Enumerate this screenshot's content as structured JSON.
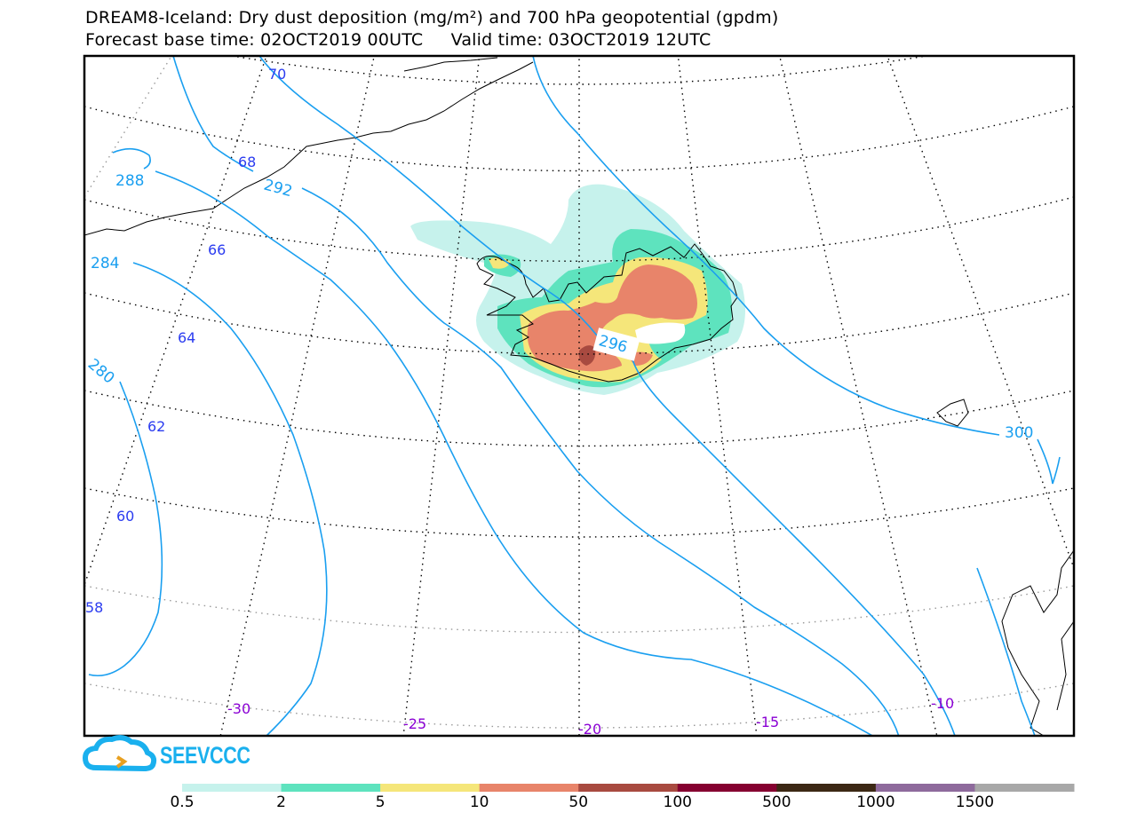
{
  "header": {
    "title_line1": "DREAM8-Iceland: Dry dust deposition (mg/m²) and 700 hPa geopotential (gpdm)",
    "base_time_label": "Forecast base time: 02OCT2019 00UTC",
    "valid_time_label": "Valid time: 03OCT2019 12UTC"
  },
  "map": {
    "latitude_labels": [
      "70",
      "68",
      "66",
      "64",
      "62",
      "60",
      "58"
    ],
    "longitude_labels": [
      "-30",
      "-25",
      "-20",
      "-15",
      "-10"
    ],
    "contour_labels": [
      "288",
      "284",
      "280",
      "292",
      "296",
      "300"
    ],
    "colors": {
      "contour": "#1a9ff0",
      "lat_label": "#2b3cf0",
      "lon_label": "#8a00d4",
      "grid": "#000000"
    }
  },
  "logo": {
    "text": "SEEVCCC"
  },
  "colorbar": {
    "labels": [
      "0.5",
      "2",
      "5",
      "10",
      "50",
      "100",
      "500",
      "1000",
      "1500"
    ],
    "colors": [
      "#c6f2ec",
      "#5ee3be",
      "#f5e67a",
      "#e8846a",
      "#a84a40",
      "#850030",
      "#3c2814",
      "#8e6a9c",
      "#a8a8a8"
    ]
  }
}
